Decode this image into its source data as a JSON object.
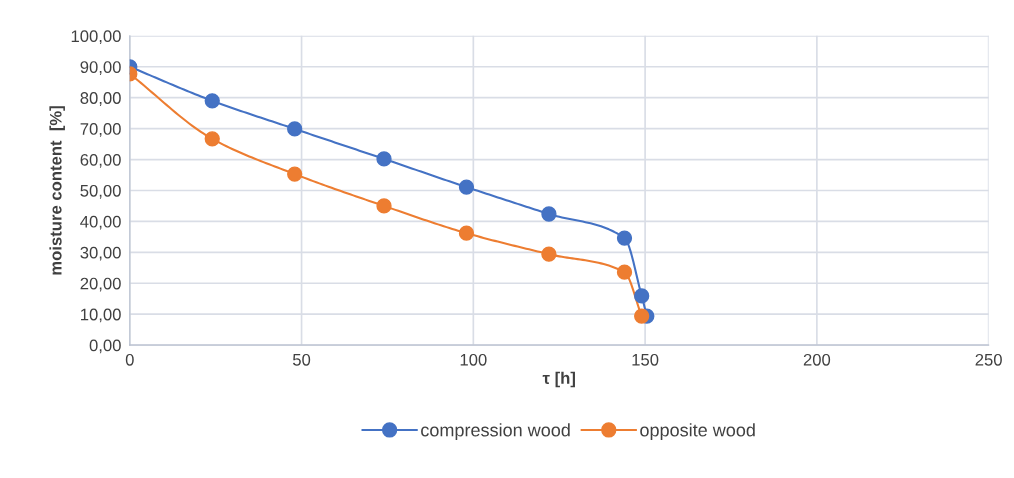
{
  "chart_data": {
    "type": "line",
    "xlabel": "τ [h]",
    "ylabel": "moisture content  [%]",
    "xlim": [
      0,
      250
    ],
    "xticks": [
      0,
      50,
      100,
      150,
      200,
      250
    ],
    "ylim": [
      0,
      100
    ],
    "yticks": [
      {
        "value": 0,
        "label": "0,00"
      },
      {
        "value": 10,
        "label": "10,00"
      },
      {
        "value": 20,
        "label": "20,00"
      },
      {
        "value": 30,
        "label": "30,00"
      },
      {
        "value": 40,
        "label": "40,00"
      },
      {
        "value": 50,
        "label": "50,00"
      },
      {
        "value": 60,
        "label": "60,00"
      },
      {
        "value": 70,
        "label": "70,00"
      },
      {
        "value": 80,
        "label": "80,00"
      },
      {
        "value": 90,
        "label": "90,00"
      },
      {
        "value": 100,
        "label": "100,00"
      }
    ],
    "grid": true,
    "legend": "bottom",
    "marker": "circle",
    "line_style": "solid",
    "series": [
      {
        "name": "compression wood",
        "color": "#4472c4",
        "x": [
          0,
          24,
          48,
          74,
          98,
          122,
          144,
          149,
          150.5
        ],
        "values": [
          90.0,
          79.0,
          69.9,
          60.2,
          51.1,
          42.4,
          34.6,
          15.9,
          9.4
        ]
      },
      {
        "name": "opposite wood",
        "color": "#ed7d31",
        "x": [
          0,
          24,
          48,
          74,
          98,
          122,
          144,
          149
        ],
        "values": [
          87.7,
          66.7,
          55.3,
          45.0,
          36.2,
          29.4,
          23.6,
          9.4
        ]
      }
    ]
  }
}
